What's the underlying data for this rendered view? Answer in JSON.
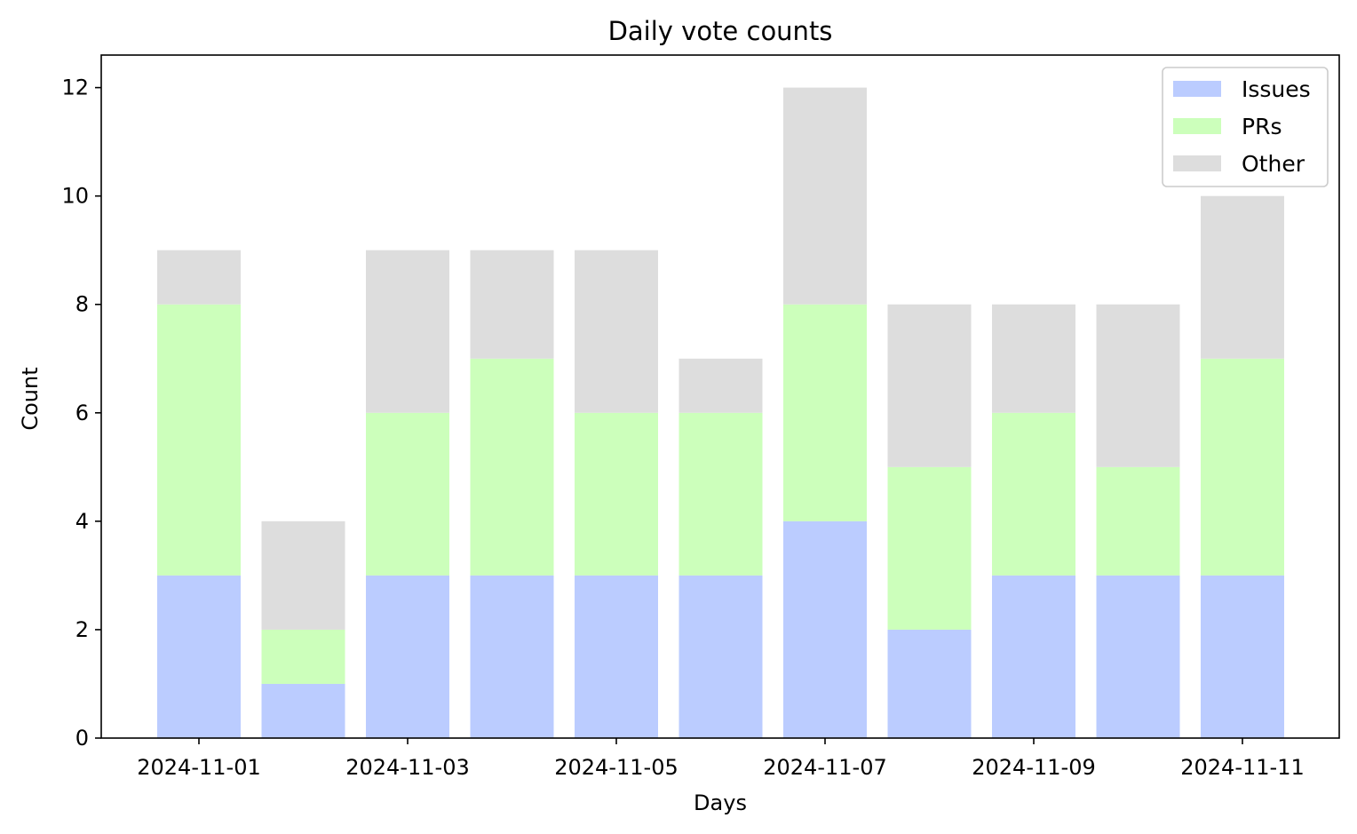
{
  "chart_data": {
    "type": "bar",
    "stacked": true,
    "title": "Daily vote counts",
    "xlabel": "Days",
    "ylabel": "Count",
    "categories": [
      "2024-11-01",
      "2024-11-02",
      "2024-11-03",
      "2024-11-04",
      "2024-11-05",
      "2024-11-06",
      "2024-11-07",
      "2024-11-08",
      "2024-11-09",
      "2024-11-10",
      "2024-11-11"
    ],
    "x_tick_labels": [
      "2024-11-01",
      "2024-11-03",
      "2024-11-05",
      "2024-11-07",
      "2024-11-09",
      "2024-11-11"
    ],
    "y_ticks": [
      0,
      2,
      4,
      6,
      8,
      10,
      12
    ],
    "ylim": [
      0,
      12.6
    ],
    "series": [
      {
        "name": "Issues",
        "color": "#bbccff",
        "values": [
          3,
          1,
          3,
          3,
          3,
          3,
          4,
          2,
          3,
          3,
          3
        ]
      },
      {
        "name": "PRs",
        "color": "#ccffbb",
        "values": [
          5,
          1,
          3,
          4,
          3,
          3,
          4,
          3,
          3,
          2,
          4
        ]
      },
      {
        "name": "Other",
        "color": "#dddddd",
        "values": [
          1,
          2,
          3,
          2,
          3,
          1,
          4,
          3,
          2,
          3,
          3
        ]
      }
    ],
    "legend_position": "top-right",
    "grid": false
  }
}
